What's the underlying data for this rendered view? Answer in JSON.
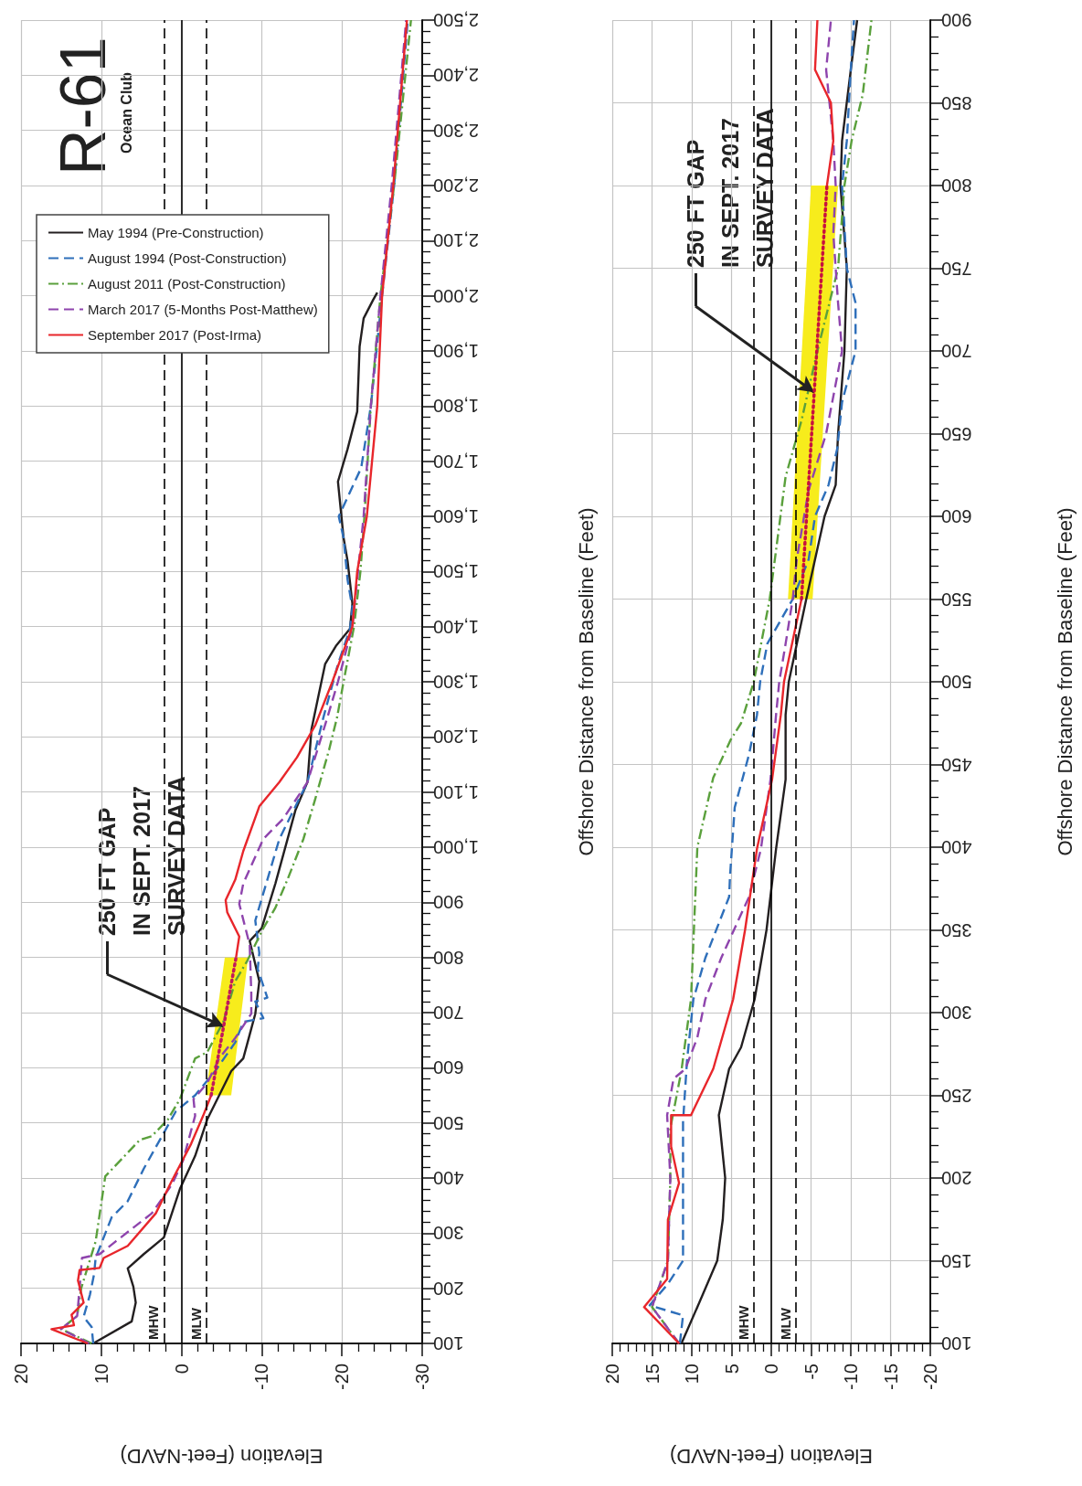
{
  "chart_data": [
    {
      "type": "line",
      "title": "R-61",
      "subtitle": "Ocean Club",
      "xlabel": "Elevation (Feet-NAVD)",
      "ylabel": "Offshore Distance from Baseline (Feet)",
      "xlim": [
        20,
        -30
      ],
      "xticks": [
        20,
        10,
        0,
        -10,
        -20,
        -30
      ],
      "ylim": [
        100,
        2500
      ],
      "yticks": [
        100,
        200,
        300,
        400,
        500,
        600,
        700,
        800,
        900,
        {
          "value": 1000,
          "label": "1,000"
        },
        {
          "value": 1100,
          "label": "1,100"
        },
        {
          "value": 1200,
          "label": "1,200"
        },
        {
          "value": 1300,
          "label": "1,300"
        },
        {
          "value": 1400,
          "label": "1,400"
        },
        {
          "value": 1500,
          "label": "1,500"
        },
        {
          "value": 1600,
          "label": "1,600"
        },
        {
          "value": 1700,
          "label": "1,700"
        },
        {
          "value": 1800,
          "label": "1,800"
        },
        {
          "value": 1900,
          "label": "1,900"
        },
        {
          "value": 2000,
          "label": "2,000"
        },
        {
          "value": 2100,
          "label": "2,100"
        },
        {
          "value": 2200,
          "label": "2,200"
        },
        {
          "value": 2300,
          "label": "2,300"
        },
        {
          "value": 2400,
          "label": "2,400"
        },
        {
          "value": 2500,
          "label": "2,500"
        }
      ],
      "grid": true,
      "legend": "top left",
      "marker": "none",
      "series": [
        {
          "type": "area",
          "color": "#f7ec1c",
          "x": [
            -6.2,
            -8.3,
            -5.4,
            -3.0
          ],
          "values": [
            550,
            800,
            800,
            550
          ]
        },
        {
          "name": "May 1994 (Pre-Construction)",
          "color": "#231f20",
          "line_style": "solid",
          "values": [
            100,
            140,
            174,
            203,
            236,
            262,
            292,
            380,
            440,
            506,
            594,
            617,
            660,
            698,
            757,
            830,
            853,
            934,
            1067,
            1118,
            1214,
            1332,
            1366,
            1396,
            1442,
            1519,
            1561,
            1663,
            1722,
            1790,
            1908,
            1959,
            1993,
            2006
          ],
          "x": [
            11,
            6.2,
            5.7,
            6,
            6.7,
            4.7,
            2.2,
            0.2,
            -1.7,
            -3.2,
            -6.2,
            -7.7,
            -8.5,
            -9.2,
            -9.7,
            -8.5,
            -10,
            -11.7,
            -14.2,
            -15.7,
            -16.2,
            -17.9,
            -19.3,
            -21,
            -21.3,
            -20.7,
            -20.2,
            -19.5,
            -20.7,
            -21.9,
            -22.2,
            -22.7,
            -23.9,
            -24.4
          ]
        },
        {
          "name": "August 1994 (Post-Construction)",
          "color": "#2e6fba",
          "line_style": "dashed",
          "values": [
            100,
            130,
            148,
            189,
            225,
            255,
            329,
            358,
            417,
            469,
            521,
            550,
            594,
            646,
            683,
            690,
            720,
            727,
            779,
            808,
            867,
            941,
            1015,
            1118,
            1236,
            1332,
            1396,
            1434,
            1485,
            1561,
            1600,
            1688,
            1800,
            2000,
            2200,
            2500
          ],
          "x": [
            11,
            11.2,
            12.2,
            11.4,
            10.9,
            10.7,
            8.7,
            6.7,
            4.7,
            2.7,
            0.7,
            -1.7,
            -4.2,
            -6.7,
            -7.7,
            -10.2,
            -9.2,
            -10.7,
            -9.5,
            -9.7,
            -9.2,
            -10.7,
            -12.2,
            -15.7,
            -17.7,
            -19.5,
            -21,
            -21.3,
            -20.7,
            -20.2,
            -19.6,
            -22.4,
            -23.6,
            -25,
            -26.5,
            -28.2
          ]
        },
        {
          "name": "August 2011 (Post-Construction)",
          "color": "#5aa03c",
          "line_style": "dashdot",
          "values": [
            100,
            126,
            150,
            200,
            285,
            403,
            469,
            476,
            506,
            543,
            617,
            628,
            683,
            757,
            794,
            853,
            890,
            941,
            1015,
            1089,
            1177,
            1236,
            1300,
            1400,
            1500,
            1600,
            1800,
            2000,
            2200,
            2500
          ],
          "x": [
            11.2,
            15,
            13,
            12.5,
            10.7,
            9.5,
            5.2,
            3.7,
            1.7,
            0.2,
            -1.7,
            -3.2,
            -5.2,
            -6.7,
            -8.2,
            -10.2,
            -11.7,
            -13.2,
            -15.2,
            -16.7,
            -18.4,
            -19.4,
            -20.2,
            -21.5,
            -22.3,
            -22.8,
            -23.6,
            -24.8,
            -26.5,
            -28.6
          ]
        },
        {
          "name": "March 2017 (5-Months Post-Matthew)",
          "color": "#8e44ad",
          "line_style": "dashed",
          "values": [
            100,
            126,
            150,
            200,
            255,
            262,
            285,
            336,
            388,
            432,
            513,
            543,
            572,
            617,
            654,
            698,
            735,
            823,
            897,
            934,
            1015,
            1052,
            1118,
            1236,
            1300,
            1400,
            1500,
            1600,
            1800,
            2000,
            2200,
            2500
          ],
          "x": [
            11.5,
            15,
            13,
            12.7,
            12.4,
            10.2,
            8.2,
            3.7,
            1.2,
            -0.2,
            -1.7,
            -1.5,
            -3.2,
            -4.7,
            -6.7,
            -8.7,
            -8.7,
            -8.5,
            -7.2,
            -7.7,
            -10.2,
            -12.7,
            -15.7,
            -18.2,
            -19.5,
            -21.3,
            -22,
            -22.7,
            -23.6,
            -24.8,
            -26.2,
            -28
          ]
        },
        {
          "name": "September 2017 (Post-Irma)",
          "color": "#e8262b",
          "line_style": "solid",
          "values": [
            100,
            126,
            133,
            152,
            174,
            214,
            233,
            237,
            255,
            277,
            336,
            395,
            462,
            513,
            550,
            null,
            800,
            838,
            882,
            904,
            941,
            993,
            1074,
            1118,
            1163,
            1222,
            1300,
            1400,
            1500,
            1600,
            1800,
            2000,
            2200,
            2500
          ],
          "x": [
            11.7,
            16.2,
            13.4,
            13.7,
            12.2,
            12.9,
            12.7,
            10.2,
            9.7,
            6.7,
            3.2,
            1.2,
            -1.2,
            -2.7,
            -3.7,
            null,
            -6.8,
            -7.2,
            -5.7,
            -5.5,
            -6.7,
            -7.7,
            -9.7,
            -12.2,
            -14.4,
            -16.7,
            -18.8,
            -21.3,
            -21.9,
            -23.1,
            -24.4,
            -25,
            -26.4,
            -28.1
          ]
        },
        {
          "color": "#c2185b",
          "line_style": "dotted",
          "x": [
            -3.7,
            -6.8
          ],
          "values": [
            550,
            800
          ]
        }
      ],
      "ref_lines": [
        {
          "axis": "x",
          "value": 0,
          "line_style": "solid",
          "color": "#000000"
        },
        {
          "axis": "x",
          "value": 2.2,
          "label": "MHW",
          "line_style": "dashed",
          "color": "#000000"
        },
        {
          "axis": "x",
          "value": -3.1,
          "label": "MLW",
          "line_style": "dashed",
          "color": "#000000"
        }
      ],
      "annotations": [
        "250 FT GAP\nIN SEPT. 2017\nSURVEY DATA"
      ]
    },
    {
      "type": "line",
      "xlabel": "Elevation (Feet-NAVD)",
      "ylabel": "Offshore Distance from Baseline (Feet)",
      "xlim": [
        20,
        -20
      ],
      "xticks": [
        20,
        15,
        10,
        5,
        0,
        -5,
        -10,
        -15,
        -20
      ],
      "ylim": [
        100,
        900
      ],
      "yticks": [
        100,
        150,
        200,
        250,
        300,
        350,
        400,
        450,
        500,
        550,
        600,
        650,
        700,
        750,
        800,
        850,
        900
      ],
      "grid": true,
      "marker": "none",
      "series": [
        {
          "type": "area",
          "color": "#f7ec1c",
          "x": [
            -5.2,
            -8.4,
            -5.0,
            -2.1
          ],
          "values": [
            550,
            800,
            800,
            550
          ]
        },
        {
          "color": "#231f20",
          "line_style": "solid",
          "values": [
            100,
            122,
            150,
            175,
            200,
            238,
            266,
            279,
            308,
            350,
            399,
            441,
            480,
            500,
            550,
            600,
            619,
            650,
            700,
            750,
            800,
            827,
            870,
            900
          ],
          "x": [
            11.3,
            9.3,
            6.8,
            6.1,
            5.8,
            6.6,
            5.3,
            3.8,
            2.1,
            0.6,
            -0.6,
            -1.8,
            -1.8,
            -2.2,
            -4.4,
            -6.7,
            -8.1,
            -8.4,
            -9.2,
            -9.5,
            -8.7,
            -8.9,
            -10,
            -10.8
          ]
        },
        {
          "color": "#2e6fba",
          "line_style": "dashed",
          "values": [
            100,
            117,
            123,
            136,
            150,
            197,
            234,
            271,
            308,
            333,
            370,
            382,
            424,
            456,
            480,
            500,
            523,
            550,
            574,
            600,
            619,
            641,
            669,
            700,
            729,
            750,
            800,
            827,
            870,
            900
          ],
          "x": [
            11.5,
            11.1,
            15.3,
            13,
            11.1,
            11.1,
            11.1,
            10.6,
            9.8,
            8.3,
            5.3,
            5.2,
            4.6,
            2.8,
            1.8,
            1.4,
            0.5,
            -2.7,
            -4.7,
            -5.5,
            -7.2,
            -8.3,
            -8.9,
            -10.6,
            -10.6,
            -9.5,
            -8.9,
            -9.5,
            -10,
            -10.4
          ]
        },
        {
          "color": "#5aa03c",
          "line_style": "dashdot",
          "values": [
            100,
            122,
            150,
            200,
            230,
            265,
            308,
            400,
            442,
            465,
            475,
            500,
            550,
            624,
            658,
            700,
            750,
            800,
            827,
            855,
            900
          ],
          "x": [
            11.6,
            15,
            13,
            12.7,
            12.7,
            11.3,
            10.1,
            9.3,
            7.3,
            5.1,
            3.8,
            2.2,
            0.2,
            -1.8,
            -3.8,
            -5.8,
            -8.4,
            -9.2,
            -10.1,
            -11.5,
            -12.6
          ]
        },
        {
          "color": "#8e44ad",
          "line_style": "dashed",
          "values": [
            100,
            122,
            150,
            200,
            238,
            260,
            266,
            285,
            308,
            333,
            370,
            399,
            441,
            480,
            500,
            523,
            550,
            574,
            616,
            650,
            700,
            729,
            771,
            800,
            827,
            870,
            900
          ],
          "x": [
            11.6,
            15,
            13,
            12.7,
            13.1,
            12.3,
            10.8,
            9.3,
            8.3,
            6.3,
            2.8,
            1.3,
            0.1,
            -0.6,
            -1,
            -1.8,
            -2.7,
            -3.2,
            -4.7,
            -6.9,
            -8.9,
            -8.4,
            -7.8,
            -8.1,
            -7.8,
            -6.9,
            -7.5
          ]
        },
        {
          "color": "#e8262b",
          "line_style": "solid",
          "values": [
            100,
            122,
            139,
            175,
            197,
            219,
            238,
            238,
            266,
            308,
            350,
            399,
            441,
            480,
            500,
            525,
            550,
            null,
            800,
            827,
            850,
            870,
            900
          ],
          "x": [
            11.6,
            16,
            13.1,
            13,
            11.6,
            12.6,
            12.6,
            10.1,
            7.3,
            4.8,
            3.3,
            1.8,
            -0.1,
            -1.2,
            -1.6,
            -2.7,
            -3.8,
            null,
            -7,
            -7.8,
            -7.5,
            -5.5,
            -5.8
          ]
        },
        {
          "color": "#c8103e",
          "line_style": "dotted",
          "x": [
            -3.8,
            -7.0
          ],
          "values": [
            550,
            800
          ]
        }
      ],
      "ref_lines": [
        {
          "axis": "x",
          "value": 0,
          "line_style": "solid",
          "color": "#000000"
        },
        {
          "axis": "x",
          "value": 2.2,
          "label": "MHW",
          "line_style": "dashed",
          "color": "#000000"
        },
        {
          "axis": "x",
          "value": -3.1,
          "label": "MLW",
          "line_style": "dashed",
          "color": "#000000"
        }
      ],
      "annotations": [
        "250 FT GAP\nIN SEPT. 2017\nSURVEY DATA"
      ]
    }
  ]
}
